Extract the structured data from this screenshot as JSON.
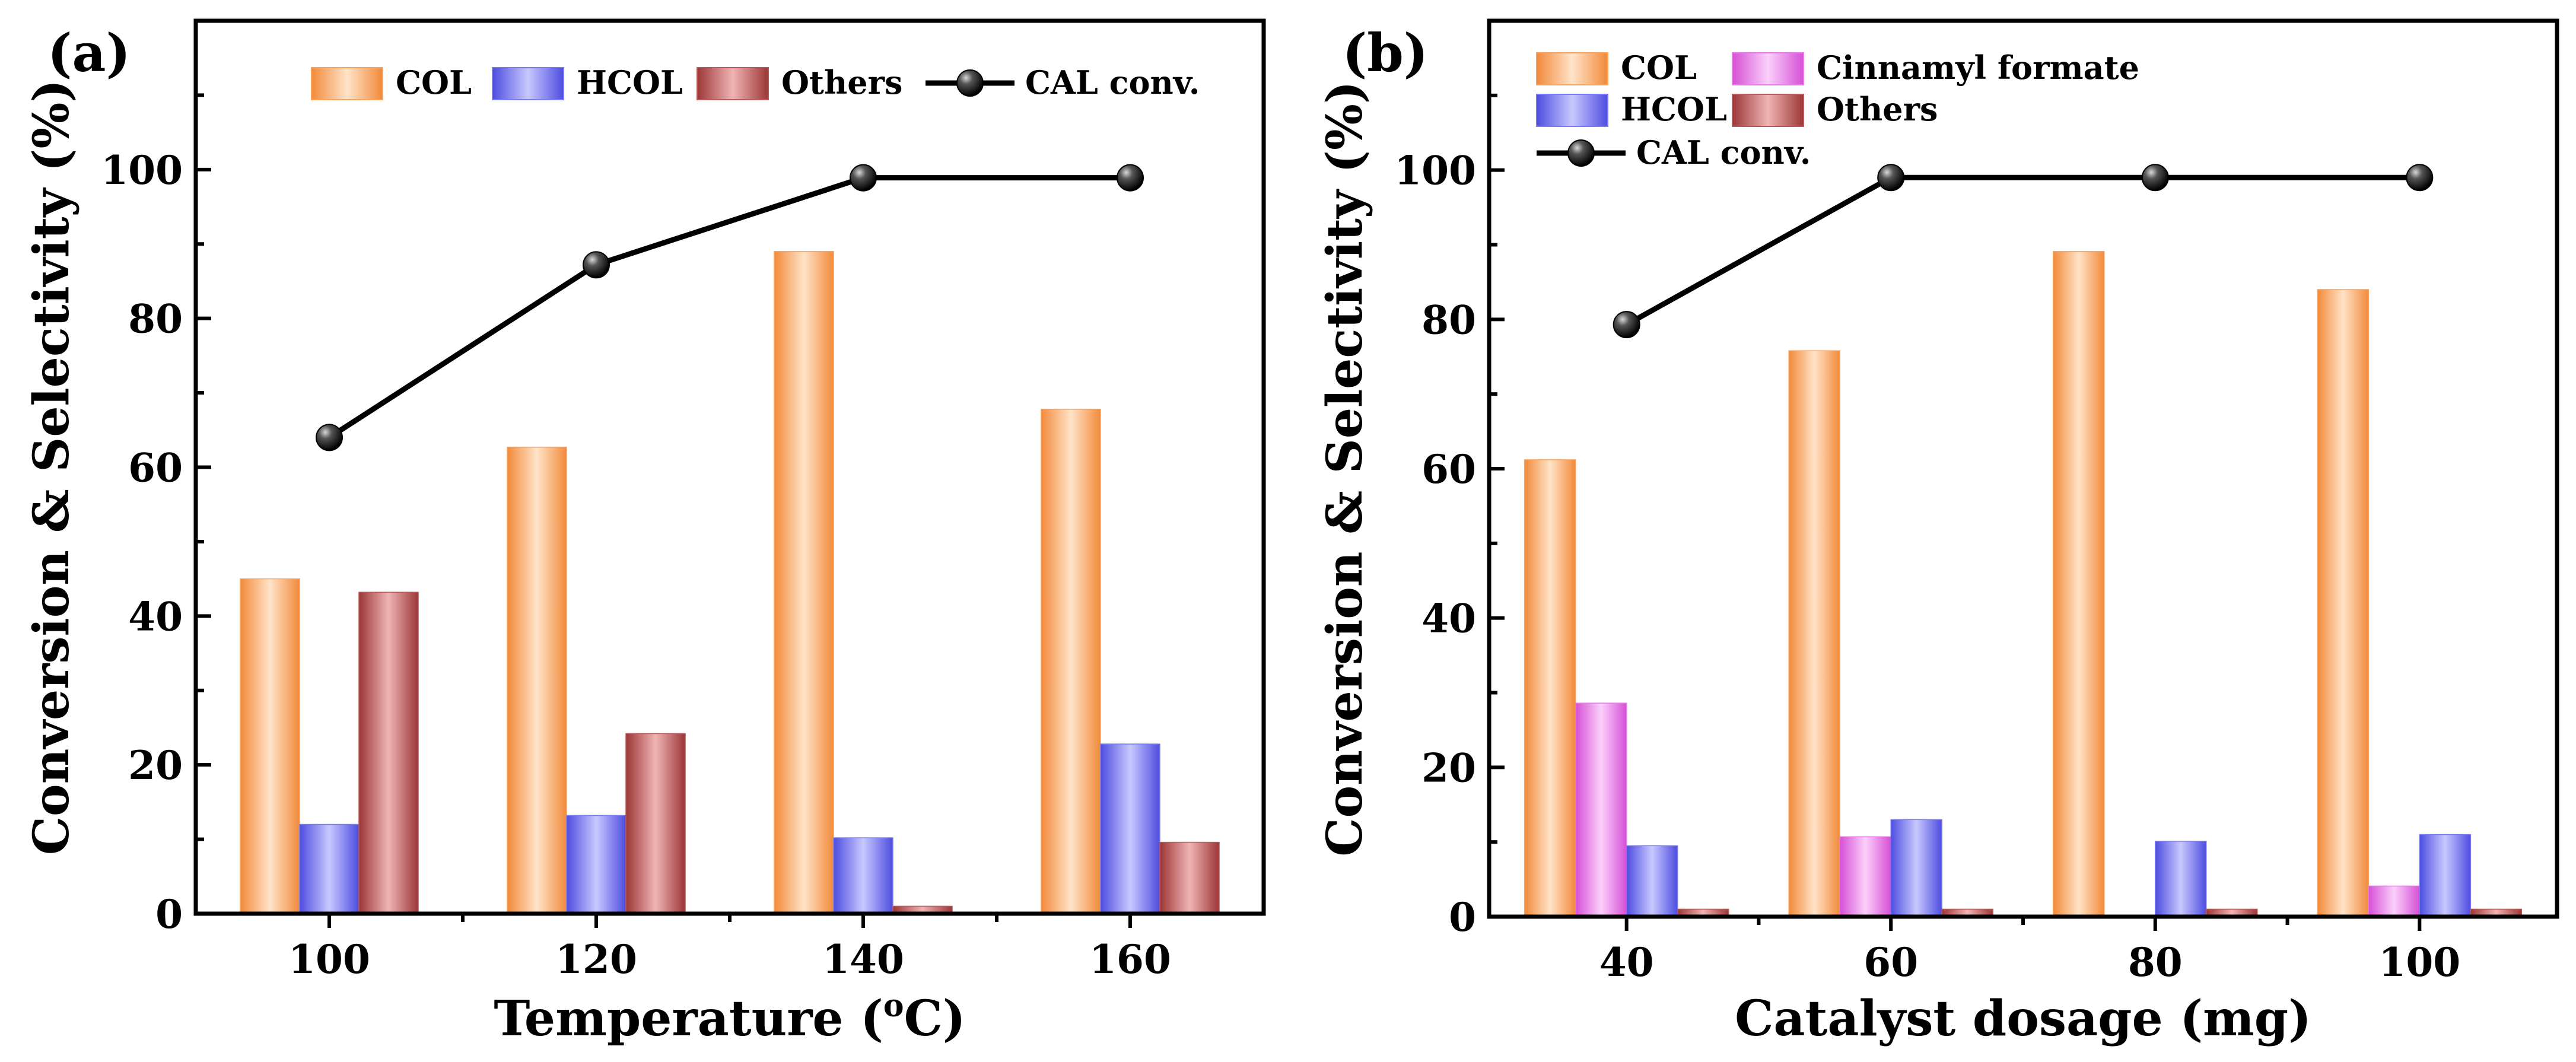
{
  "chart_data": [
    {
      "type": "bar",
      "panel_label": "(a)",
      "xlabel": "Temperature (°C)",
      "xlabel_main": "Temperature (",
      "xlabel_sup": "o",
      "xlabel_tail": "C)",
      "ylabel": "Conversion & Selectivity (%)",
      "ylim": [
        0,
        120
      ],
      "yticks": [
        0,
        20,
        40,
        60,
        80,
        100
      ],
      "categories": [
        "100",
        "120",
        "140",
        "160"
      ],
      "series": [
        {
          "name": "COL",
          "values": [
            45,
            62.7,
            89,
            67.8
          ],
          "color": "#f7a25e"
        },
        {
          "name": "HCOL",
          "values": [
            12,
            13.2,
            10.2,
            22.8
          ],
          "color": "#7b7bf0"
        },
        {
          "name": "Others",
          "values": [
            43.2,
            24.2,
            1,
            9.6
          ],
          "color": "#b85a5a"
        }
      ],
      "line": {
        "name": "CAL conv.",
        "values": [
          64,
          87.2,
          98.9,
          98.9
        ],
        "color": "#000000"
      },
      "legend": "top, single row"
    },
    {
      "type": "bar",
      "panel_label": "(b)",
      "xlabel": "Catalyst dosage (mg)",
      "ylabel": "Conversion & Selectivity (%)",
      "ylim": [
        0,
        120
      ],
      "yticks": [
        0,
        20,
        40,
        60,
        80,
        100
      ],
      "categories": [
        "40",
        "60",
        "80",
        "100"
      ],
      "series": [
        {
          "name": "COL",
          "values": [
            61.2,
            75.8,
            89.1,
            84
          ],
          "color": "#f7a25e"
        },
        {
          "name": "Cinnamyl formate",
          "values": [
            28.6,
            10.7,
            0,
            4.1
          ],
          "color": "#e87ae8"
        },
        {
          "name": "HCOL",
          "values": [
            9.5,
            13,
            10.1,
            11
          ],
          "color": "#7b7bf0"
        },
        {
          "name": "Others",
          "values": [
            1,
            1,
            1,
            1
          ],
          "color": "#b85a5a"
        }
      ],
      "line": {
        "name": "CAL conv.",
        "values": [
          79.3,
          99,
          99,
          99
        ],
        "color": "#000000"
      },
      "legend": "top-left, two columns"
    }
  ]
}
